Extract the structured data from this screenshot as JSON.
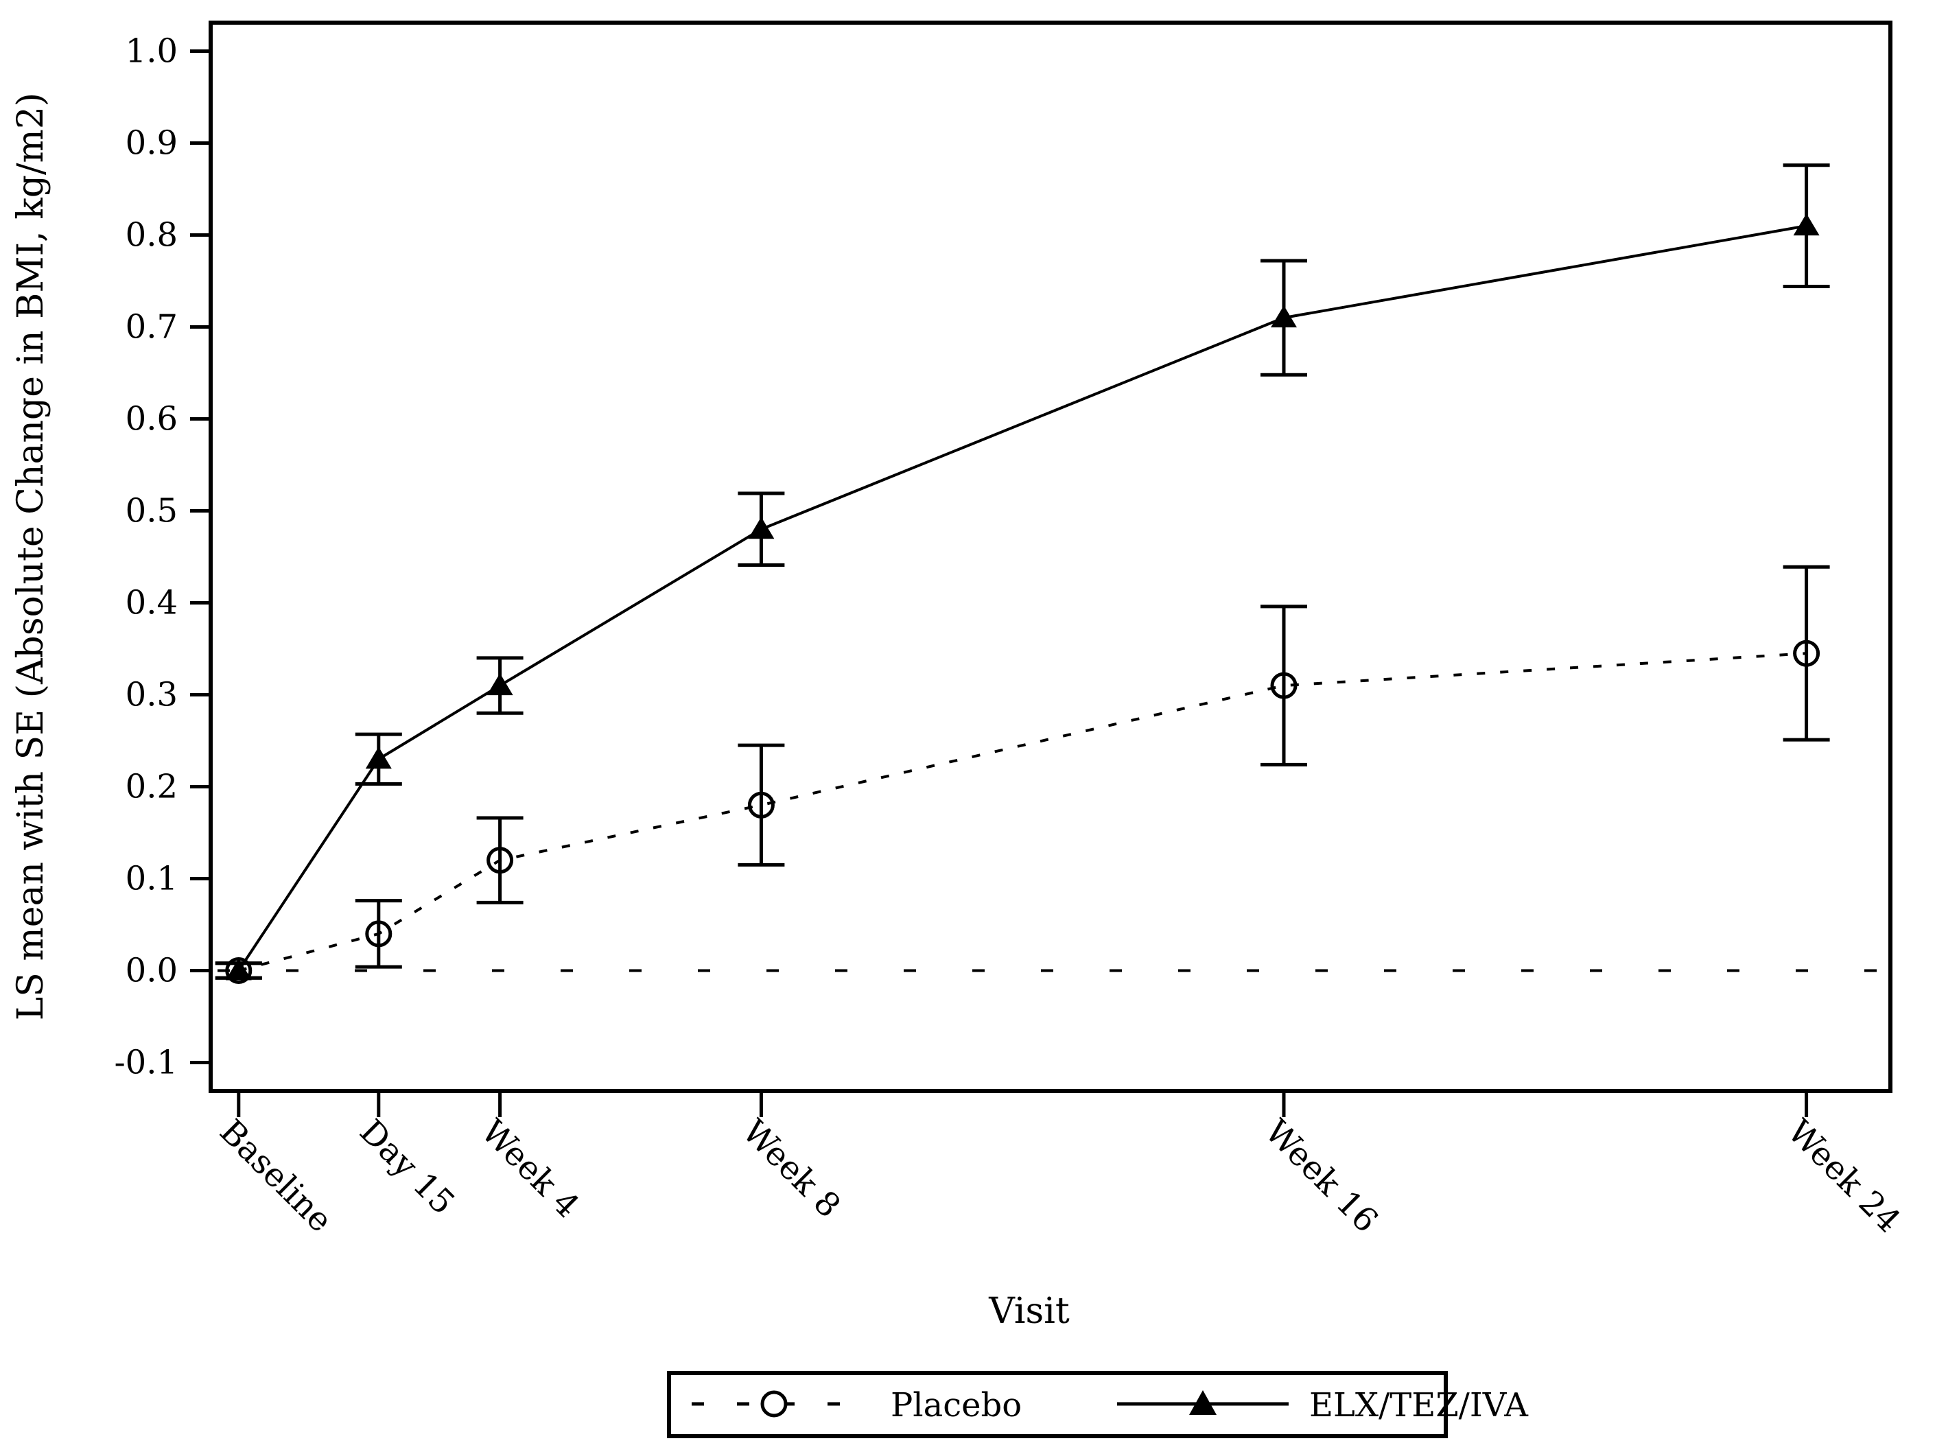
{
  "page": {
    "background": "#ffffff",
    "ink": "#000000"
  },
  "chart_data": {
    "type": "line",
    "title": "",
    "xlabel": "Visit",
    "ylabel": "LS mean with SE (Absolute Change in BMI, kg/m2)",
    "grid": false,
    "frame": true,
    "legend_position": "bottom",
    "x_categories": [
      "Baseline",
      "Day 15",
      "Week 4",
      "Week 8",
      "Week 16",
      "Week 24"
    ],
    "x_days": [
      0,
      15,
      28,
      56,
      112,
      168
    ],
    "xlim_days": [
      -3,
      177
    ],
    "ylim": [
      -0.131,
      1.031
    ],
    "y_ticks": [
      {
        "value": 1.0,
        "label": "1.0"
      },
      {
        "value": 0.9,
        "label": "0.9"
      },
      {
        "value": 0.8,
        "label": "0.8"
      },
      {
        "value": 0.7,
        "label": "0.7"
      },
      {
        "value": 0.6,
        "label": "0.6"
      },
      {
        "value": 0.5,
        "label": "0.5"
      },
      {
        "value": 0.4,
        "label": "0.4"
      },
      {
        "value": 0.3,
        "label": "0.3"
      },
      {
        "value": 0.2,
        "label": "0.2"
      },
      {
        "value": 0.1,
        "label": "0.1"
      },
      {
        "value": 0.0,
        "label": "0.0"
      },
      {
        "value": -0.1,
        "label": "-0.1"
      }
    ],
    "reference_line": {
      "y": 0.0,
      "style": "dashed"
    },
    "series": [
      {
        "name": "Placebo",
        "marker": "open-circle",
        "line_style": "dashed",
        "color": "#000000",
        "values": [
          0.0,
          0.04,
          0.12,
          0.18,
          0.31,
          0.345
        ],
        "se": [
          0.008,
          0.036,
          0.046,
          0.065,
          0.086,
          0.094
        ]
      },
      {
        "name": "ELX/TEZ/IVA",
        "marker": "filled-triangle",
        "line_style": "solid",
        "color": "#000000",
        "values": [
          0.0,
          0.23,
          0.31,
          0.48,
          0.71,
          0.81
        ],
        "se": [
          0.008,
          0.027,
          0.03,
          0.039,
          0.062,
          0.066
        ]
      }
    ]
  }
}
